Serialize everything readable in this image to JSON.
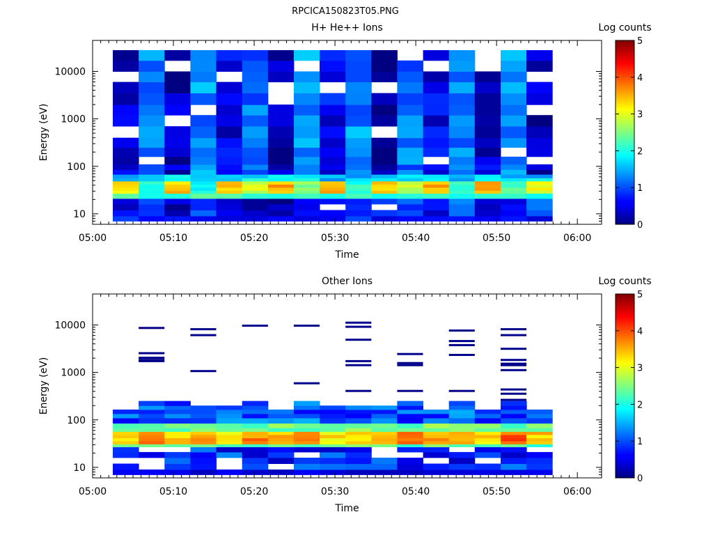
{
  "figure_title": "RPCICA150823T05.PNG",
  "colormap": "jet",
  "chart_data": [
    {
      "type": "heatmap",
      "title": "H+ He++ Ions",
      "xlabel": "Time",
      "ylabel": "Energy (eV)",
      "x_ticks": [
        "05:00",
        "05:10",
        "05:20",
        "05:30",
        "05:40",
        "05:50",
        "06:00"
      ],
      "xlim_minutes": [
        0,
        63
      ],
      "y_scale": "log",
      "ylim": [
        6,
        45000
      ],
      "y_ticks": [
        {
          "value": 10,
          "label": "10"
        },
        {
          "value": 100,
          "label": "100"
        },
        {
          "value": 1000,
          "label": "1000"
        },
        {
          "value": 10000,
          "label": "10000"
        }
      ],
      "colorbar": {
        "label": "Log counts",
        "min": 0,
        "max": 5,
        "ticks": [
          "0",
          "1",
          "2",
          "3",
          "4",
          "5"
        ]
      },
      "time_bins_start_min": [
        2.5,
        5.7,
        8.9,
        12.1,
        15.3,
        18.5,
        21.7,
        24.9,
        28.1,
        31.3,
        34.5,
        37.7,
        40.9,
        44.1,
        47.3,
        50.5,
        53.7
      ],
      "time_bin_width_min": 3.2,
      "energy_bins_eV": [
        7,
        9,
        12,
        16,
        21,
        27,
        31,
        36,
        42,
        49,
        57,
        68,
        85,
        110,
        160,
        250,
        400,
        700,
        1200,
        2000,
        3500,
        6000,
        10000,
        17000,
        28000
      ],
      "log_counts_ev_12": [
        0.5,
        0.8,
        0.3,
        1.0,
        0.4,
        0.3,
        0.2,
        0.5,
        0.8,
        0.6,
        1.0,
        0.9,
        0.5,
        1.1,
        0.3,
        0.7,
        1.0
      ],
      "log_counts_ev_31_42": [
        3.3,
        2.0,
        3.4,
        2.0,
        3.3,
        2.8,
        3.5,
        2.6,
        3.4,
        2.0,
        3.3,
        2.7,
        3.5,
        2.0,
        3.5,
        2.2,
        3.1
      ],
      "log_counts_ev_above_100": [
        0.4,
        1.2,
        0.3,
        1.3,
        0.5,
        1.2,
        0.2,
        1.4,
        0.6,
        1.3,
        0.2,
        1.2,
        0.5,
        1.2,
        0.4,
        1.3,
        0.3
      ]
    },
    {
      "type": "heatmap",
      "title": "Other Ions",
      "xlabel": "Time",
      "ylabel": "Energy (eV)",
      "x_ticks": [
        "05:00",
        "05:10",
        "05:20",
        "05:30",
        "05:40",
        "05:50",
        "06:00"
      ],
      "xlim_minutes": [
        0,
        63
      ],
      "y_scale": "log",
      "ylim": [
        6,
        45000
      ],
      "y_ticks": [
        {
          "value": 10,
          "label": "10"
        },
        {
          "value": 100,
          "label": "100"
        },
        {
          "value": 1000,
          "label": "1000"
        },
        {
          "value": 10000,
          "label": "10000"
        }
      ],
      "colorbar": {
        "label": "Log counts",
        "min": 0,
        "max": 5,
        "ticks": [
          "0",
          "1",
          "2",
          "3",
          "4",
          "5"
        ]
      },
      "time_bins_start_min": [
        2.5,
        5.7,
        8.9,
        12.1,
        15.3,
        18.5,
        21.7,
        24.9,
        28.1,
        31.3,
        34.5,
        37.7,
        40.9,
        44.1,
        47.3,
        50.5,
        53.7
      ],
      "time_bin_width_min": 3.2,
      "energy_bins_eV": [
        7,
        9,
        12,
        16,
        21,
        27,
        31,
        36,
        42,
        49,
        57,
        68,
        85,
        110,
        135,
        165,
        200,
        250
      ],
      "log_counts_ev_36_42": [
        3.4,
        3.7,
        3.4,
        3.5,
        3.2,
        3.7,
        3.4,
        3.8,
        3.2,
        3.4,
        3.3,
        3.8,
        3.5,
        3.6,
        3.3,
        3.9,
        3.4
      ],
      "upper_envelope_eV": [
        165,
        270,
        250,
        200,
        190,
        250,
        165,
        230,
        190,
        185,
        185,
        210,
        165,
        240,
        165,
        210,
        165
      ],
      "sparse_high_energy_eV": [
        [],
        [
          1700,
          8500,
          2500,
          2000,
          1800
        ],
        [
          8000,
          6000,
          1050
        ],
        [
          9500
        ],
        [
          580,
          9500
        ],
        [
          1700,
          11000,
          9000,
          4800,
          1400,
          400
        ],
        [
          1550,
          2400,
          1400,
          400
        ],
        [
          2300,
          7500,
          4500,
          3700,
          400
        ],
        [
          1100,
          1800,
          1400,
          430,
          260
        ],
        [
          3100,
          1500,
          8000,
          6000,
          350
        ]
      ]
    }
  ]
}
